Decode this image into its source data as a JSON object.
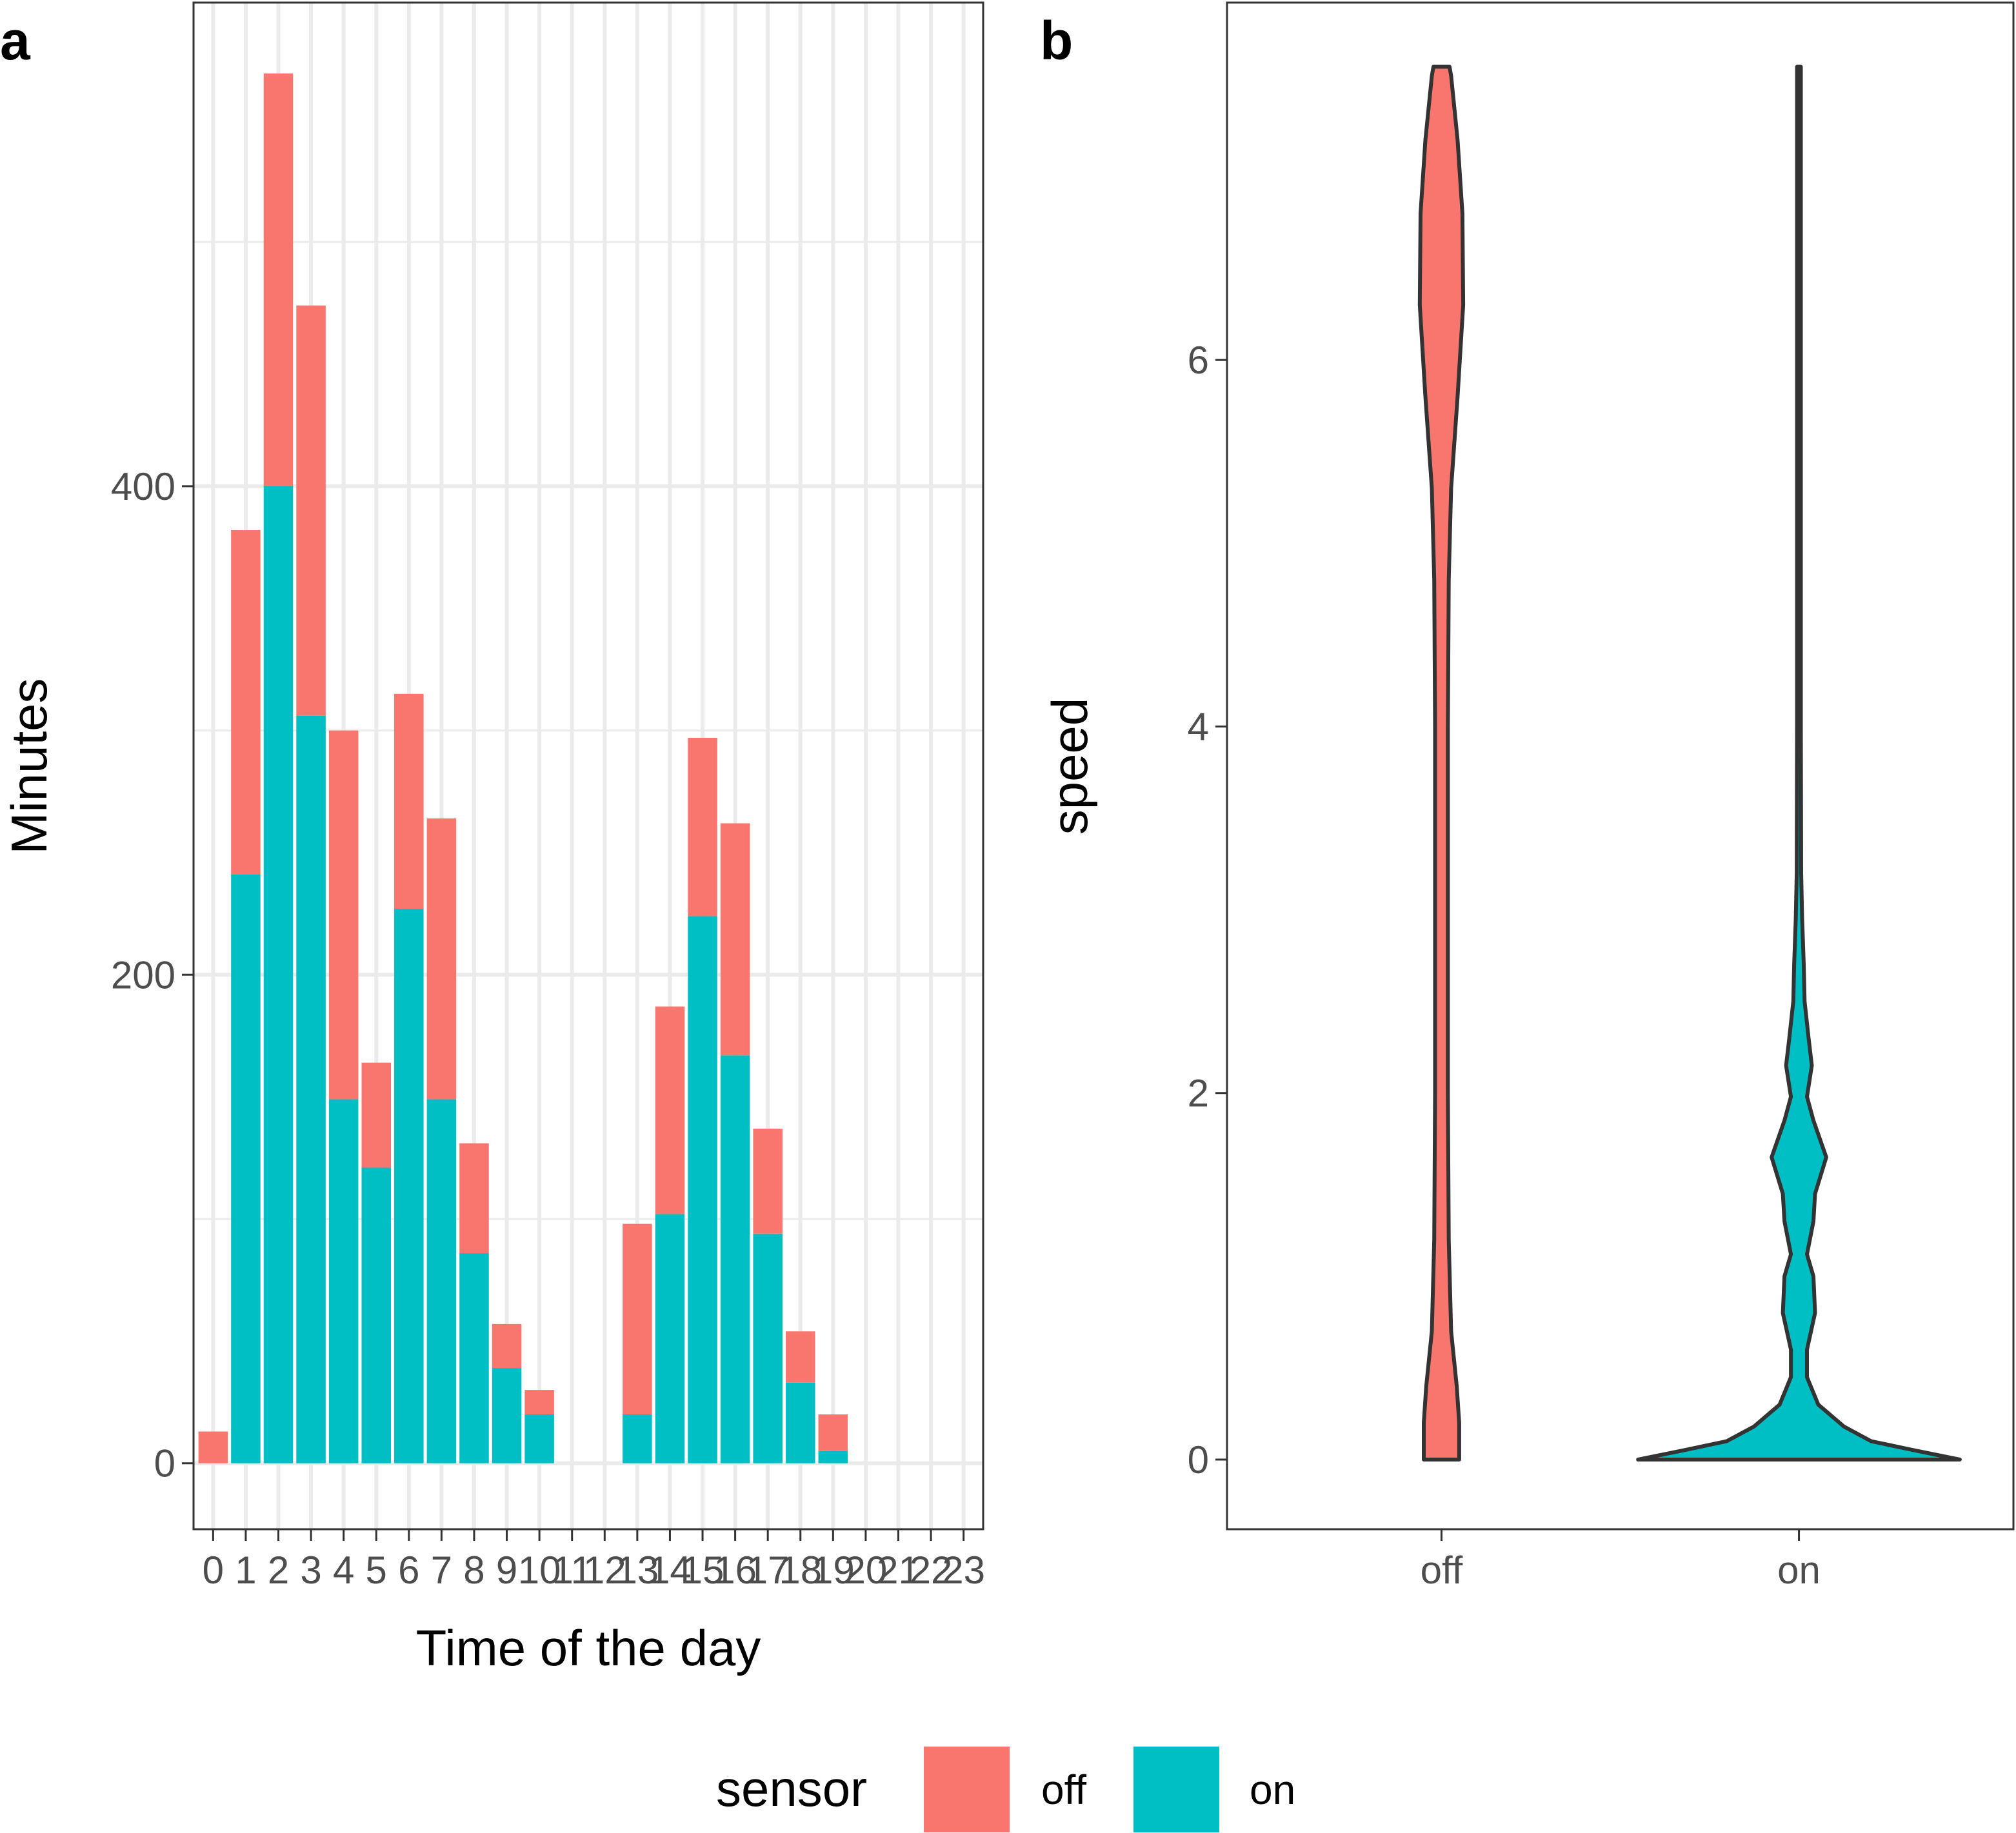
{
  "panels": {
    "a": {
      "letter": "a"
    },
    "b": {
      "letter": "b"
    }
  },
  "legend": {
    "title": "sensor",
    "items": [
      {
        "label": "off",
        "color": "#F8766D"
      },
      {
        "label": "on",
        "color": "#00BFC4"
      }
    ]
  },
  "chart_data": [
    {
      "type": "bar",
      "stacked": true,
      "xlabel": "Time of the day",
      "ylabel": "Minutes",
      "categories": [
        "0",
        "1",
        "2",
        "3",
        "4",
        "5",
        "6",
        "7",
        "8",
        "9",
        "10",
        "11",
        "12",
        "13",
        "14",
        "15",
        "16",
        "17",
        "18",
        "19",
        "20",
        "21",
        "22",
        "23"
      ],
      "series": [
        {
          "name": "on",
          "color": "#00BFC4",
          "values": [
            0,
            241,
            400,
            306,
            149,
            121,
            227,
            149,
            86,
            39,
            20,
            0,
            0,
            20,
            102,
            224,
            167,
            94,
            33,
            5,
            0,
            0,
            0,
            0
          ]
        },
        {
          "name": "off",
          "color": "#F8766D",
          "values": [
            13,
            141,
            169,
            168,
            151,
            43,
            88,
            115,
            45,
            18,
            10,
            0,
            0,
            78,
            85,
            73,
            95,
            43,
            21,
            15,
            0,
            0,
            0,
            0
          ]
        }
      ],
      "ylim": [
        -27,
        598
      ],
      "yticks": [
        0,
        200,
        400
      ],
      "grid": true,
      "legend_position": "bottom"
    },
    {
      "type": "violin",
      "xlabel": "",
      "ylabel": "speed",
      "categories": [
        "off",
        "on"
      ],
      "series": [
        {
          "name": "off",
          "color": "#F8766D",
          "density_profile": [
            [
              0,
              0.11
            ],
            [
              0.2,
              0.11
            ],
            [
              0.4,
              0.095
            ],
            [
              0.7,
              0.06
            ],
            [
              1.2,
              0.045
            ],
            [
              2,
              0.04
            ],
            [
              3,
              0.04
            ],
            [
              4,
              0.04
            ],
            [
              4.8,
              0.045
            ],
            [
              5.3,
              0.06
            ],
            [
              5.8,
              0.1
            ],
            [
              6.3,
              0.135
            ],
            [
              6.8,
              0.13
            ],
            [
              7.2,
              0.1
            ],
            [
              7.55,
              0.06
            ],
            [
              7.6,
              0.05
            ]
          ]
        },
        {
          "name": "on",
          "color": "#00BFC4",
          "density_profile": [
            [
              0,
              1.0
            ],
            [
              0.05,
              0.72
            ],
            [
              0.1,
              0.45
            ],
            [
              0.18,
              0.28
            ],
            [
              0.3,
              0.12
            ],
            [
              0.45,
              0.05
            ],
            [
              0.6,
              0.05
            ],
            [
              0.8,
              0.1
            ],
            [
              1.0,
              0.09
            ],
            [
              1.12,
              0.05
            ],
            [
              1.3,
              0.09
            ],
            [
              1.45,
              0.1
            ],
            [
              1.65,
              0.17
            ],
            [
              1.85,
              0.09
            ],
            [
              1.98,
              0.05
            ],
            [
              2.15,
              0.08
            ],
            [
              2.3,
              0.06
            ],
            [
              2.5,
              0.035
            ],
            [
              2.7,
              0.03
            ],
            [
              2.95,
              0.02
            ],
            [
              3.2,
              0.014
            ],
            [
              4,
              0.012
            ],
            [
              5,
              0.012
            ],
            [
              6,
              0.012
            ],
            [
              7,
              0.012
            ],
            [
              7.6,
              0.012
            ]
          ]
        }
      ],
      "ylim": [
        -0.38,
        7.95
      ],
      "yticks": [
        0,
        2,
        4,
        6
      ],
      "grid": false
    }
  ]
}
